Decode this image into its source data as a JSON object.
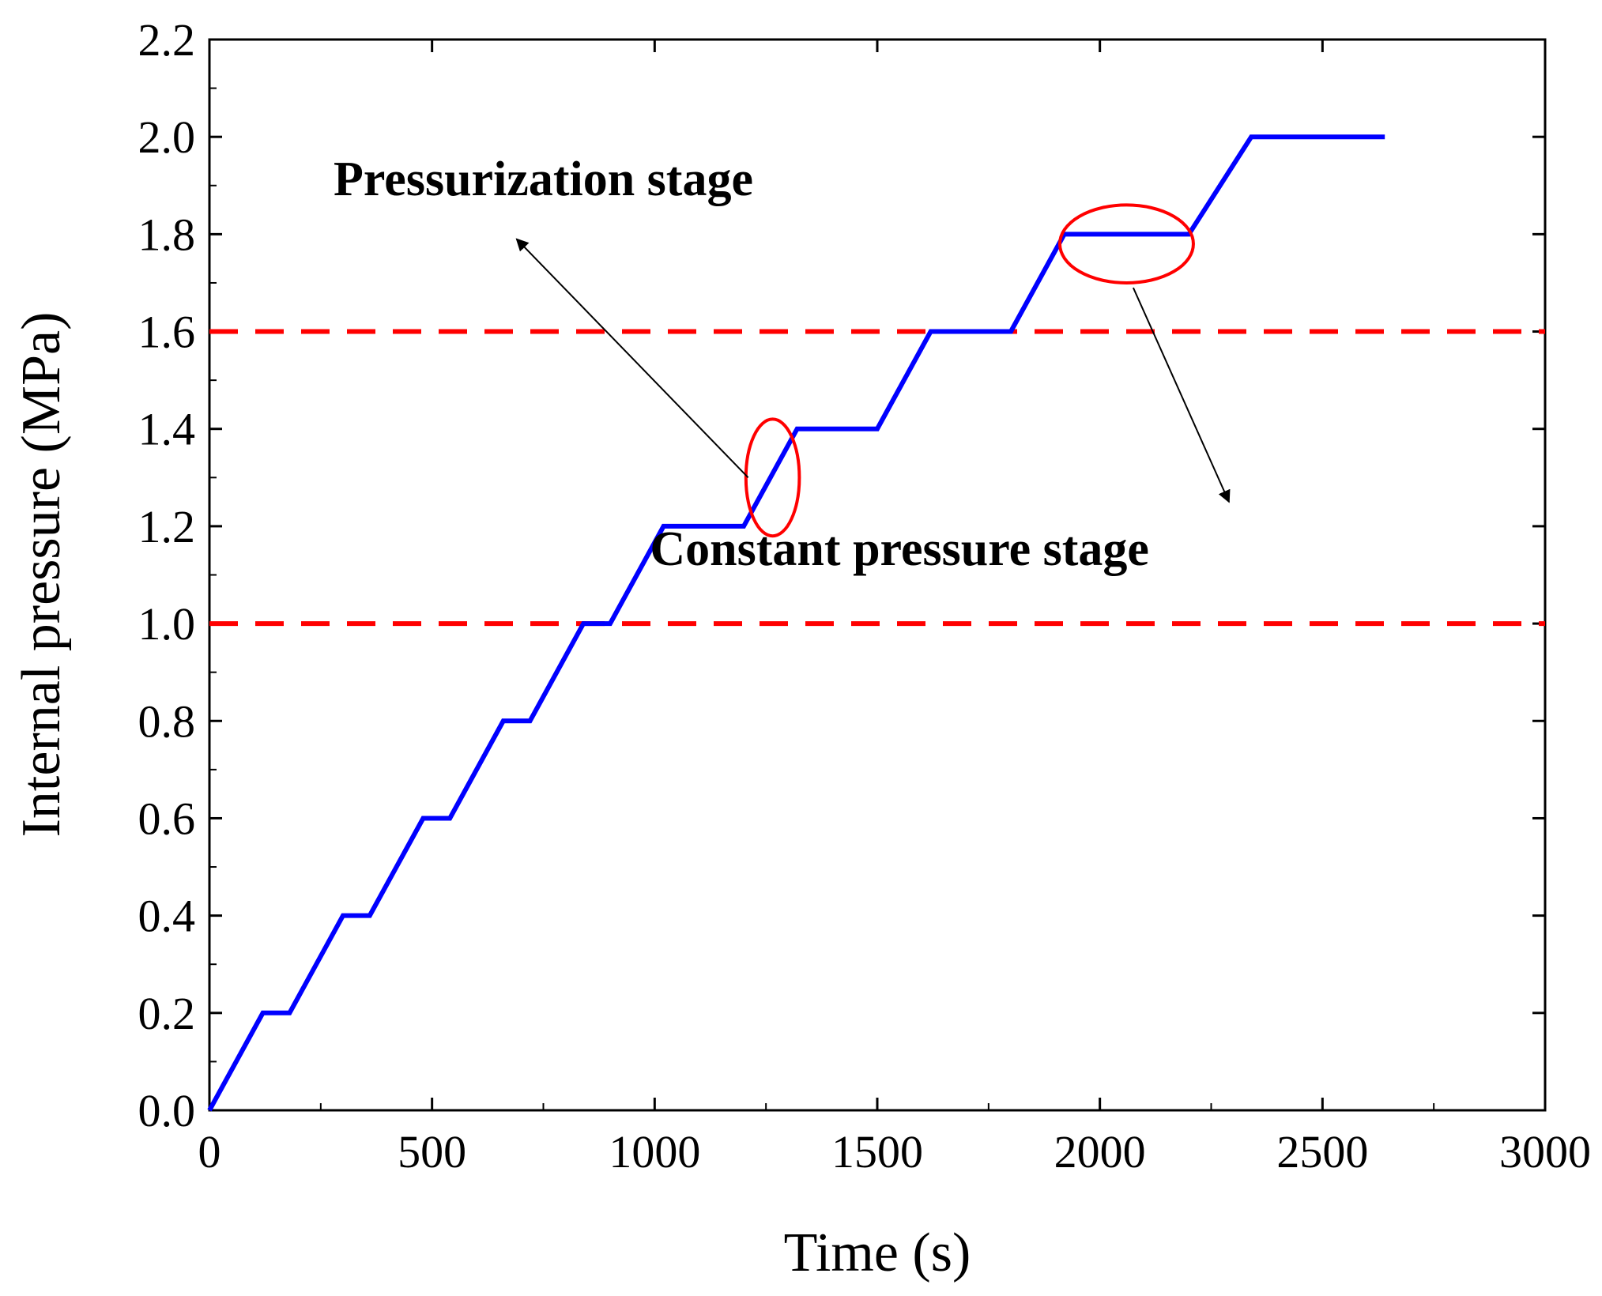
{
  "chart_data": {
    "type": "line",
    "xlabel": "Time (s)",
    "ylabel": "Internal pressure (MPa)",
    "xlim": [
      0,
      3000
    ],
    "ylim": [
      0,
      2.2
    ],
    "xticks": [
      0,
      500,
      1000,
      1500,
      2000,
      2500,
      3000
    ],
    "xtick_labels": [
      "0",
      "500",
      "1000",
      "1500",
      "2000",
      "2500",
      "3000"
    ],
    "yticks": [
      0,
      0.2,
      0.4,
      0.6,
      0.8,
      1.0,
      1.2,
      1.4,
      1.6,
      1.8,
      2.0,
      2.2
    ],
    "ytick_labels": [
      "0.0",
      "0.2",
      "0.4",
      "0.6",
      "0.8",
      "1.0",
      "1.2",
      "1.4",
      "1.6",
      "1.8",
      "2.0",
      "2.2"
    ],
    "grid": false,
    "series": [
      {
        "color": "#0000ff",
        "x": [
          0,
          120,
          180,
          300,
          360,
          480,
          540,
          660,
          720,
          840,
          900,
          1020,
          1200,
          1320,
          1500,
          1620,
          1800,
          1920,
          2200,
          2340,
          2640
        ],
        "y": [
          0,
          0.2,
          0.2,
          0.4,
          0.4,
          0.6,
          0.6,
          0.8,
          0.8,
          1.0,
          1.0,
          1.2,
          1.2,
          1.4,
          1.4,
          1.6,
          1.6,
          1.8,
          1.8,
          2.0,
          2.0
        ]
      }
    ],
    "reference_lines": [
      {
        "y": 1.6,
        "color": "#ff0000",
        "style": "dashed"
      },
      {
        "y": 1.0,
        "color": "#ff0000",
        "style": "dashed"
      }
    ],
    "annotations": [
      {
        "text": "Pressurization stage",
        "text_at": [
          750,
          1.88
        ],
        "arrow_from": [
          1210,
          1.3
        ],
        "arrow_to": [
          690,
          1.79
        ],
        "ellipse_center": [
          1265,
          1.3
        ],
        "ellipse_radius": [
          60,
          0.12
        ]
      },
      {
        "text": "Constant pressure stage",
        "text_at": [
          1550,
          1.12
        ],
        "arrow_from": [
          2075,
          1.69
        ],
        "arrow_to": [
          2290,
          1.25
        ],
        "ellipse_center": [
          2060,
          1.78
        ],
        "ellipse_radius": [
          150,
          0.08
        ]
      }
    ],
    "colors": {
      "series": "#0000ff",
      "reference": "#ff0000",
      "annotation": "#ff0000"
    }
  }
}
